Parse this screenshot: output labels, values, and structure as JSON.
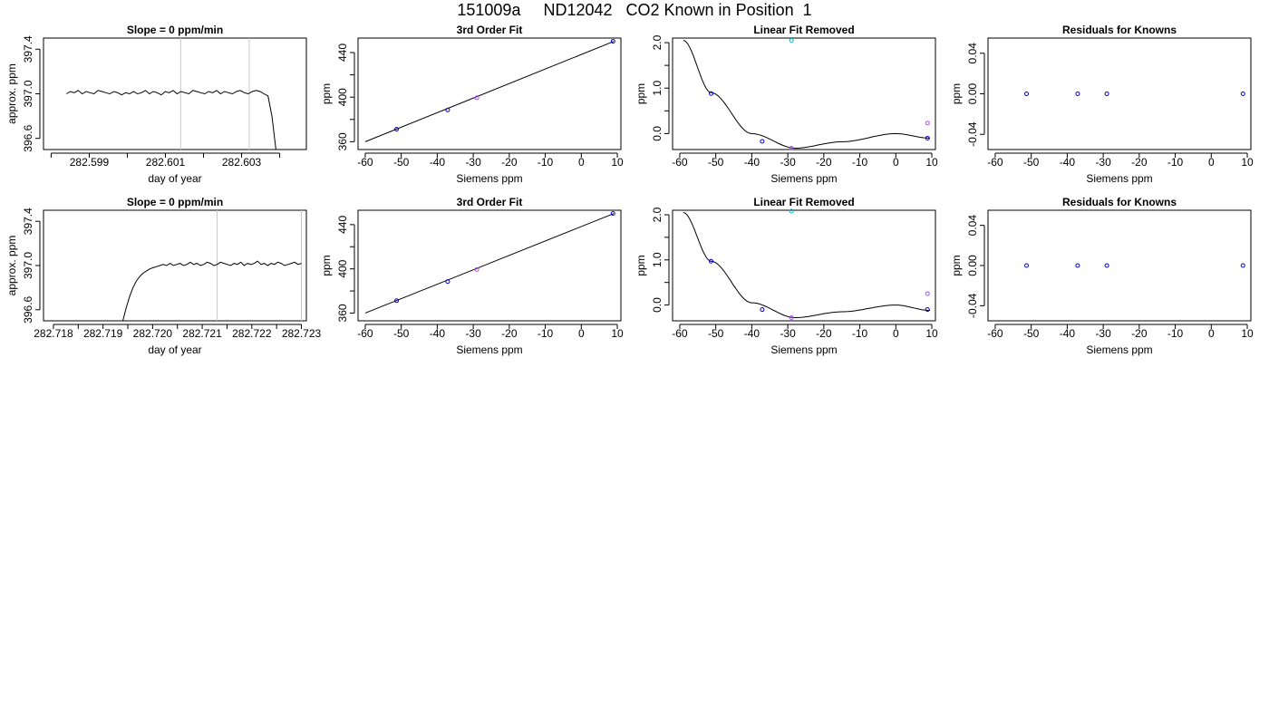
{
  "title": "151009a     ND12042   CO2 Known in Position  1",
  "colors": {
    "axis": "#000000",
    "trace": "#000000",
    "vline": "#c8c8c8",
    "blue": "#0000cc",
    "violet": "#aa44ff",
    "cyan": "#00bbcc"
  },
  "chart_data": [
    {
      "type": "line",
      "title": "Slope =  0  ppm/min",
      "xlabel": "day of year",
      "ylabel": "approx. ppm",
      "xlim": [
        282.5978,
        282.6047
      ],
      "ylim": [
        396.5,
        397.5
      ],
      "xticks": [
        282.598,
        282.599,
        282.6,
        282.601,
        282.602,
        282.603,
        282.604
      ],
      "xtick_labels": [
        "",
        "282.599",
        "",
        "282.601",
        "",
        "282.603",
        ""
      ],
      "yticks": [
        396.6,
        397.0,
        397.4
      ],
      "ytick_labels": [
        "396.6",
        "397.0",
        "397.4"
      ],
      "vlines": [
        282.6014,
        282.6032
      ],
      "series": [
        {
          "x_start": 282.5984,
          "x_end": 282.6039,
          "y": [
            397.0,
            397.02,
            397.01,
            397.03,
            397.0,
            397.02,
            397.01,
            397.0,
            397.03,
            397.02,
            397.01,
            397.0,
            397.02,
            397.01,
            396.99,
            397.01,
            397.0,
            397.02,
            397.0,
            397.01,
            397.03,
            397.0,
            397.02,
            397.01,
            396.99,
            397.02,
            397.01,
            397.03,
            397.0,
            397.02,
            397.01,
            397.0,
            397.03,
            397.02,
            397.01,
            397.0,
            397.02,
            397.01,
            397.03,
            397.0,
            397.02,
            397.01,
            397.0,
            397.02,
            397.03,
            397.01,
            397.0,
            397.02,
            397.03,
            397.02,
            397.0,
            396.98,
            396.8,
            396.5
          ]
        }
      ]
    },
    {
      "type": "scatter",
      "title": "3rd Order Fit",
      "xlabel": "Siemens ppm",
      "ylabel": "ppm",
      "xlim": [
        -62,
        11
      ],
      "ylim": [
        353,
        453
      ],
      "xticks": [
        -60,
        -50,
        -40,
        -30,
        -20,
        -10,
        0,
        10
      ],
      "xtick_labels": [
        "-60",
        "-50",
        "-40",
        "-30",
        "-20",
        "-10",
        "0",
        "10"
      ],
      "yticks": [
        360,
        380,
        400,
        420,
        440
      ],
      "ytick_labels": [
        "360",
        "",
        "400",
        "",
        "440"
      ],
      "fit_line": {
        "x": [
          -60,
          9
        ],
        "y": [
          360,
          450
        ]
      },
      "points": [
        {
          "x": -51.3,
          "y": 371.2,
          "color": "blue"
        },
        {
          "x": -37.1,
          "y": 388.5,
          "color": "blue"
        },
        {
          "x": -29.0,
          "y": 399.4,
          "color": "violet"
        },
        {
          "x": 8.8,
          "y": 450.1,
          "color": "blue"
        }
      ]
    },
    {
      "type": "scatter",
      "title": "Linear Fit Removed",
      "xlabel": "Siemens ppm",
      "ylabel": "ppm",
      "xlim": [
        -62,
        11
      ],
      "ylim": [
        -0.35,
        2.1
      ],
      "xticks": [
        -60,
        -50,
        -40,
        -30,
        -20,
        -10,
        0,
        10
      ],
      "xtick_labels": [
        "-60",
        "-50",
        "-40",
        "-30",
        "-20",
        "-10",
        "0",
        "10"
      ],
      "yticks": [
        0,
        0.5,
        1.0,
        1.5,
        2.0
      ],
      "ytick_labels": [
        "0.0",
        "",
        "1.0",
        "",
        "2.0"
      ],
      "fit_curve": {
        "x_start": -59,
        "x_end": 9.5,
        "anchors": [
          {
            "x": -59,
            "y": 2.05
          },
          {
            "x": -51.3,
            "y": 0.9
          },
          {
            "x": -40,
            "y": 0.0
          },
          {
            "x": -28,
            "y": -0.32
          },
          {
            "x": -15,
            "y": -0.18
          },
          {
            "x": 0,
            "y": 0.0
          },
          {
            "x": 9.5,
            "y": -0.1
          }
        ]
      },
      "points": [
        {
          "x": -51.3,
          "y": 0.88,
          "color": "blue"
        },
        {
          "x": -37.1,
          "y": -0.17,
          "color": "blue"
        },
        {
          "x": -29.0,
          "y": 2.05,
          "color": "cyan"
        },
        {
          "x": -29.0,
          "y": -0.32,
          "color": "violet"
        },
        {
          "x": 8.8,
          "y": 0.23,
          "color": "violet"
        },
        {
          "x": 8.8,
          "y": -0.1,
          "color": "blue"
        }
      ]
    },
    {
      "type": "scatter",
      "title": "Residuals for Knowns",
      "xlabel": "Siemens ppm",
      "ylabel": "ppm",
      "xlim": [
        -62,
        11
      ],
      "ylim": [
        -0.055,
        0.055
      ],
      "xticks": [
        -60,
        -50,
        -40,
        -30,
        -20,
        -10,
        0,
        10
      ],
      "xtick_labels": [
        "-60",
        "-50",
        "-40",
        "-30",
        "-20",
        "-10",
        "0",
        "10"
      ],
      "yticks": [
        -0.04,
        0.0,
        0.04
      ],
      "ytick_labels": [
        "-0.04",
        "0.00",
        "0.04"
      ],
      "points": [
        {
          "x": -51.3,
          "y": 0.0,
          "color": "blue"
        },
        {
          "x": -37.1,
          "y": 0.0,
          "color": "blue"
        },
        {
          "x": -29.0,
          "y": 0.0,
          "color": "blue"
        },
        {
          "x": 8.8,
          "y": 0.0,
          "color": "blue"
        }
      ]
    },
    {
      "type": "line",
      "title": "Slope =  0  ppm/min",
      "xlabel": "day of year",
      "ylabel": "approx. ppm",
      "xlim": [
        282.7178,
        282.7231
      ],
      "ylim": [
        396.5,
        397.5
      ],
      "xticks": [
        282.718,
        282.7185,
        282.719,
        282.7195,
        282.72,
        282.7205,
        282.721,
        282.7215,
        282.722,
        282.7225,
        282.723
      ],
      "xtick_labels": [
        "282.718",
        "",
        "282.719",
        "",
        "282.720",
        "",
        "282.721",
        "",
        "282.722",
        "",
        "282.723"
      ],
      "yticks": [
        396.6,
        397.0,
        397.4
      ],
      "ytick_labels": [
        "396.6",
        "397.0",
        "397.4"
      ],
      "vlines": [
        282.7213,
        282.723
      ],
      "series": [
        {
          "x_start": 282.7194,
          "x_end": 282.723,
          "y": [
            396.5,
            396.62,
            396.72,
            396.8,
            396.86,
            396.9,
            396.93,
            396.95,
            396.97,
            396.98,
            396.99,
            397.0,
            397.01,
            397.0,
            397.02,
            397.0,
            397.01,
            397.02,
            397.0,
            397.01,
            397.03,
            397.01,
            397.02,
            397.0,
            397.01,
            397.03,
            397.02,
            397.0,
            397.01,
            397.03,
            397.02,
            397.01,
            397.0,
            397.02,
            397.01,
            397.03,
            397.0,
            397.02,
            397.01,
            397.02,
            397.04,
            397.01,
            397.02,
            397.0,
            397.02,
            397.01,
            397.03,
            397.02,
            397.0,
            397.01,
            397.02,
            397.03,
            397.01,
            397.02
          ]
        }
      ]
    },
    {
      "type": "scatter",
      "title": "3rd Order Fit",
      "xlabel": "Siemens ppm",
      "ylabel": "ppm",
      "xlim": [
        -62,
        11
      ],
      "ylim": [
        353,
        453
      ],
      "xticks": [
        -60,
        -50,
        -40,
        -30,
        -20,
        -10,
        0,
        10
      ],
      "xtick_labels": [
        "-60",
        "-50",
        "-40",
        "-30",
        "-20",
        "-10",
        "0",
        "10"
      ],
      "yticks": [
        360,
        380,
        400,
        420,
        440
      ],
      "ytick_labels": [
        "360",
        "",
        "400",
        "",
        "440"
      ],
      "fit_line": {
        "x": [
          -60,
          9
        ],
        "y": [
          360,
          450
        ]
      },
      "points": [
        {
          "x": -51.3,
          "y": 371.2,
          "color": "blue"
        },
        {
          "x": -37.1,
          "y": 388.5,
          "color": "blue"
        },
        {
          "x": -29.0,
          "y": 399.4,
          "color": "violet"
        },
        {
          "x": 8.8,
          "y": 450.1,
          "color": "blue"
        }
      ]
    },
    {
      "type": "scatter",
      "title": "Linear Fit Removed",
      "xlabel": "Siemens ppm",
      "ylabel": "ppm",
      "xlim": [
        -62,
        11
      ],
      "ylim": [
        -0.35,
        2.1
      ],
      "xticks": [
        -60,
        -50,
        -40,
        -30,
        -20,
        -10,
        0,
        10
      ],
      "xtick_labels": [
        "-60",
        "-50",
        "-40",
        "-30",
        "-20",
        "-10",
        "0",
        "10"
      ],
      "yticks": [
        0,
        0.5,
        1.0,
        1.5,
        2.0
      ],
      "ytick_labels": [
        "0.0",
        "",
        "1.0",
        "",
        "2.0"
      ],
      "fit_curve": {
        "x_start": -59,
        "x_end": 9.5,
        "anchors": [
          {
            "x": -59,
            "y": 2.05
          },
          {
            "x": -51.3,
            "y": 0.97
          },
          {
            "x": -40,
            "y": 0.05
          },
          {
            "x": -28,
            "y": -0.28
          },
          {
            "x": -15,
            "y": -0.15
          },
          {
            "x": 0,
            "y": 0.0
          },
          {
            "x": 9.5,
            "y": -0.12
          }
        ]
      },
      "points": [
        {
          "x": -51.3,
          "y": 0.97,
          "color": "blue"
        },
        {
          "x": -37.1,
          "y": -0.1,
          "color": "blue"
        },
        {
          "x": -29.0,
          "y": 2.08,
          "color": "cyan"
        },
        {
          "x": -29.0,
          "y": -0.28,
          "color": "violet"
        },
        {
          "x": 8.8,
          "y": 0.25,
          "color": "violet"
        },
        {
          "x": 8.8,
          "y": -0.1,
          "color": "blue"
        }
      ]
    },
    {
      "type": "scatter",
      "title": "Residuals for Knowns",
      "xlabel": "Siemens ppm",
      "ylabel": "ppm",
      "xlim": [
        -62,
        11
      ],
      "ylim": [
        -0.055,
        0.055
      ],
      "xticks": [
        -60,
        -50,
        -40,
        -30,
        -20,
        -10,
        0,
        10
      ],
      "xtick_labels": [
        "-60",
        "-50",
        "-40",
        "-30",
        "-20",
        "-10",
        "0",
        "10"
      ],
      "yticks": [
        -0.04,
        0.0,
        0.04
      ],
      "ytick_labels": [
        "-0.04",
        "0.00",
        "0.04"
      ],
      "points": [
        {
          "x": -51.3,
          "y": 0.0,
          "color": "blue"
        },
        {
          "x": -37.1,
          "y": 0.0,
          "color": "blue"
        },
        {
          "x": -29.0,
          "y": 0.0,
          "color": "blue"
        },
        {
          "x": 8.8,
          "y": 0.0,
          "color": "blue"
        }
      ]
    }
  ]
}
